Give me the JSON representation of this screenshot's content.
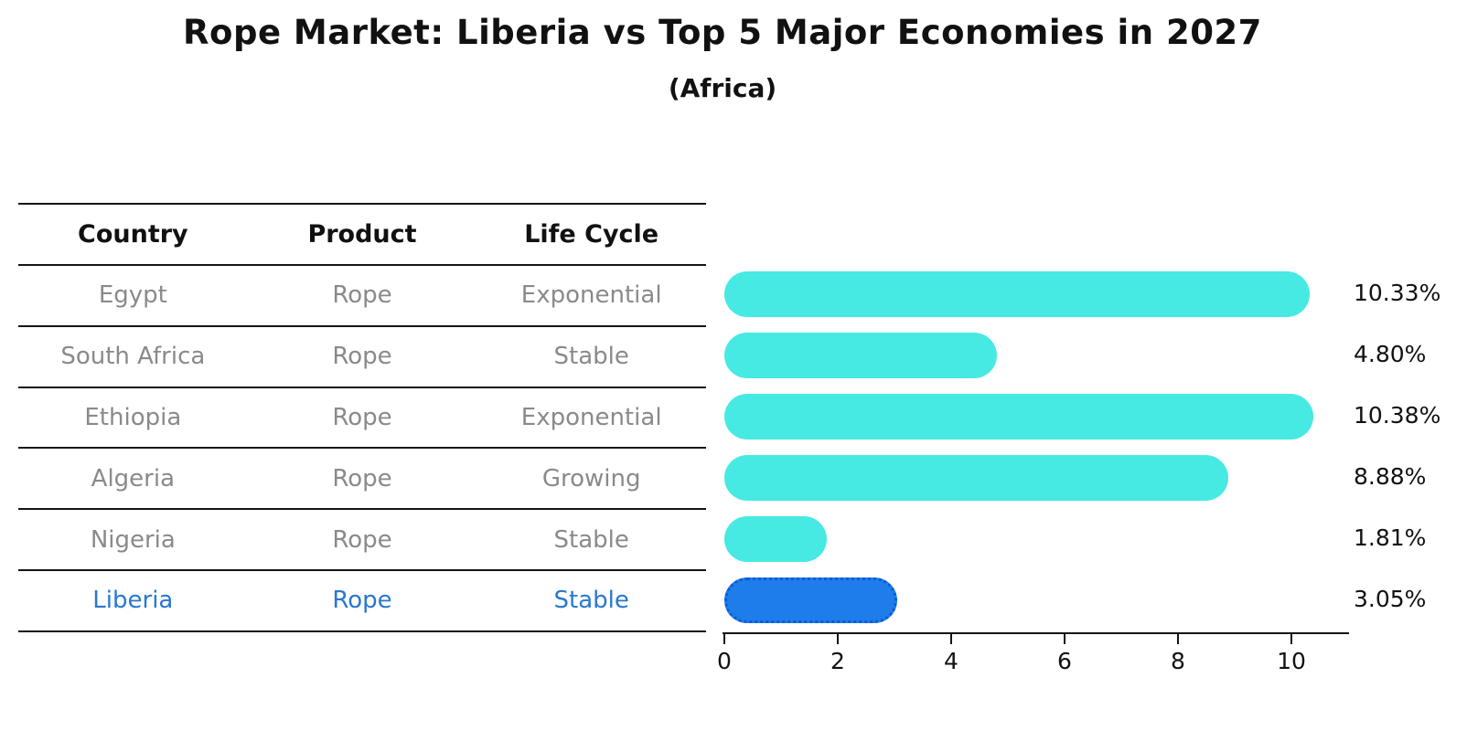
{
  "title": "Rope Market: Liberia vs Top 5 Major Economies in 2027",
  "subtitle": "(Africa)",
  "table": {
    "headers": [
      "Country",
      "Product",
      "Life Cycle"
    ],
    "rows": [
      {
        "country": "Egypt",
        "product": "Rope",
        "life_cycle": "Exponential",
        "highlight": false
      },
      {
        "country": "South Africa",
        "product": "Rope",
        "life_cycle": "Stable",
        "highlight": false
      },
      {
        "country": "Ethiopia",
        "product": "Rope",
        "life_cycle": "Exponential",
        "highlight": false
      },
      {
        "country": "Algeria",
        "product": "Rope",
        "life_cycle": "Growing",
        "highlight": false
      },
      {
        "country": "Nigeria",
        "product": "Rope",
        "life_cycle": "Stable",
        "highlight": false
      },
      {
        "country": "Liberia",
        "product": "Rope",
        "life_cycle": "Stable",
        "highlight": true
      }
    ]
  },
  "chart_data": {
    "type": "bar",
    "orientation": "horizontal",
    "categories": [
      "Egypt",
      "South Africa",
      "Ethiopia",
      "Algeria",
      "Nigeria",
      "Liberia"
    ],
    "values": [
      10.33,
      4.8,
      10.38,
      8.88,
      1.81,
      3.05
    ],
    "value_labels": [
      "10.33%",
      "4.80%",
      "10.38%",
      "8.88%",
      "1.81%",
      "3.05%"
    ],
    "x_ticks": [
      0,
      2,
      4,
      6,
      8,
      10
    ],
    "xlim": [
      0,
      10.95
    ],
    "grid": false,
    "legend": "none",
    "highlight_index": 5,
    "colors": {
      "bar_default": "#47E9E3",
      "bar_highlight": "#1E7CEB",
      "bar_highlight_border": "#0C5CD6",
      "row_text": "#8A8A8A",
      "highlight_text": "#2878D0",
      "axis_text": "#111111",
      "line": "#151515"
    }
  }
}
